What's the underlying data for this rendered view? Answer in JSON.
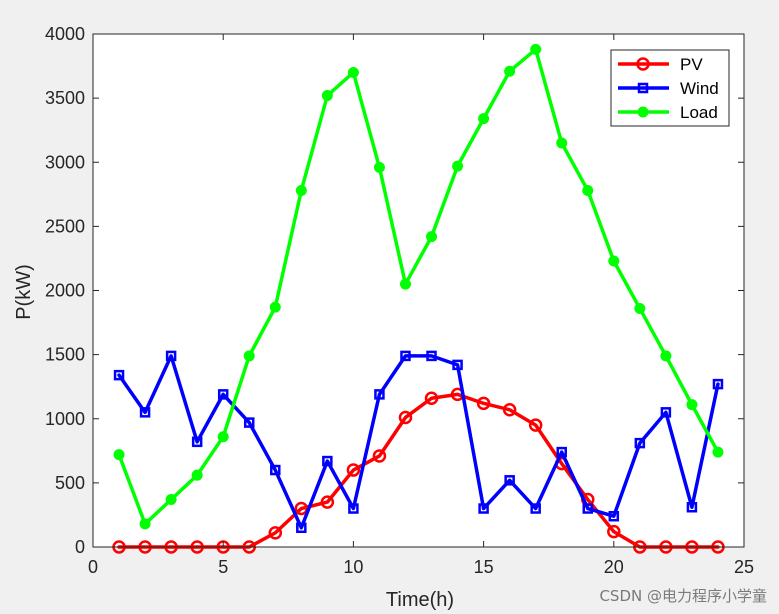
{
  "chart_data": {
    "type": "line",
    "xlabel": "Time(h)",
    "ylabel": "P(kW)",
    "xlim": [
      0,
      25
    ],
    "ylim": [
      0,
      4000
    ],
    "xticks": [
      0,
      5,
      10,
      15,
      20,
      25
    ],
    "yticks": [
      0,
      500,
      1000,
      1500,
      2000,
      2500,
      3000,
      3500,
      4000
    ],
    "x": [
      1,
      2,
      3,
      4,
      5,
      6,
      7,
      8,
      9,
      10,
      11,
      12,
      13,
      14,
      15,
      16,
      17,
      18,
      19,
      20,
      21,
      22,
      23,
      24
    ],
    "grid": false,
    "legend_position": "top-right",
    "series": [
      {
        "name": "PV",
        "color": "#ff0000",
        "marker": "circle-open",
        "values": [
          0,
          0,
          0,
          0,
          0,
          0,
          110,
          300,
          350,
          600,
          710,
          1010,
          1160,
          1190,
          1120,
          1070,
          950,
          650,
          370,
          120,
          0,
          0,
          0,
          0
        ]
      },
      {
        "name": "Wind",
        "color": "#0000ff",
        "marker": "square-open",
        "values": [
          1340,
          1050,
          1490,
          820,
          1190,
          970,
          600,
          150,
          670,
          300,
          1190,
          1490,
          1490,
          1420,
          300,
          520,
          300,
          740,
          300,
          240,
          810,
          1050,
          310,
          1270
        ]
      },
      {
        "name": "Load",
        "color": "#00ff00",
        "marker": "circle-filled",
        "values": [
          720,
          180,
          370,
          560,
          860,
          1490,
          1870,
          2780,
          3520,
          3700,
          2960,
          2050,
          2420,
          2970,
          3340,
          3710,
          3880,
          3150,
          2780,
          2230,
          1860,
          1490,
          1110,
          740
        ]
      }
    ]
  },
  "watermark": "CSDN @电力程序小学童"
}
